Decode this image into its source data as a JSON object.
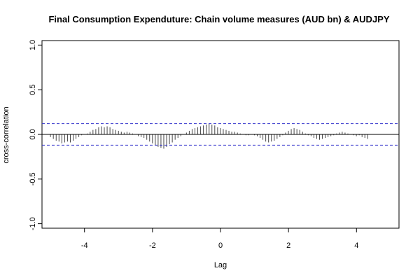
{
  "chart_data": {
    "type": "bar",
    "title": "Final Consumption Expenduture: Chain volume measures (AUD bn) & AUDJPY",
    "xlabel": "Lag",
    "ylabel": "cross-correlation",
    "xlim": [
      -5.25,
      5.25
    ],
    "ylim": [
      -1.05,
      1.05
    ],
    "x_ticks": [
      -4,
      -2,
      0,
      2,
      4
    ],
    "x_tick_labels": [
      "-4",
      "-2",
      "0",
      "2",
      "4"
    ],
    "y_ticks": [
      -1.0,
      -0.5,
      0.0,
      0.5,
      1.0
    ],
    "y_tick_labels": [
      "-1.0",
      "-0.5",
      "0.0",
      "0.5",
      "1.0"
    ],
    "confidence_bound": 0.12,
    "zero_line": true,
    "colors": {
      "bars": "#444444",
      "confidence": "#3333cc",
      "zero": "#000000"
    },
    "lag_start": -5.0,
    "lag_step": 0.0833,
    "values": [
      -0.03,
      -0.05,
      -0.07,
      -0.08,
      -0.1,
      -0.09,
      -0.08,
      -0.09,
      -0.07,
      -0.05,
      -0.03,
      -0.01,
      0.0,
      0.01,
      0.03,
      0.05,
      0.06,
      0.08,
      0.09,
      0.08,
      0.09,
      0.08,
      0.06,
      0.05,
      0.04,
      0.03,
      0.02,
      0.03,
      0.02,
      0.01,
      0.0,
      -0.02,
      -0.03,
      -0.04,
      -0.06,
      -0.08,
      -0.1,
      -0.12,
      -0.14,
      -0.15,
      -0.16,
      -0.14,
      -0.11,
      -0.09,
      -0.06,
      -0.04,
      -0.02,
      0.0,
      0.02,
      0.04,
      0.06,
      0.07,
      0.08,
      0.09,
      0.1,
      0.11,
      0.12,
      0.11,
      0.1,
      0.08,
      0.07,
      0.06,
      0.05,
      0.04,
      0.03,
      0.03,
      0.02,
      0.01,
      0.0,
      -0.01,
      -0.01,
      0.0,
      -0.01,
      -0.02,
      -0.04,
      -0.06,
      -0.08,
      -0.09,
      -0.08,
      -0.07,
      -0.05,
      -0.03,
      -0.01,
      0.02,
      0.04,
      0.06,
      0.07,
      0.06,
      0.05,
      0.03,
      0.01,
      -0.01,
      -0.02,
      -0.04,
      -0.05,
      -0.06,
      -0.05,
      -0.04,
      -0.03,
      -0.02,
      -0.01,
      0.01,
      0.02,
      0.03,
      0.02,
      0.01,
      0.0,
      -0.01,
      -0.02,
      -0.01,
      -0.03,
      -0.04,
      -0.05
    ]
  }
}
